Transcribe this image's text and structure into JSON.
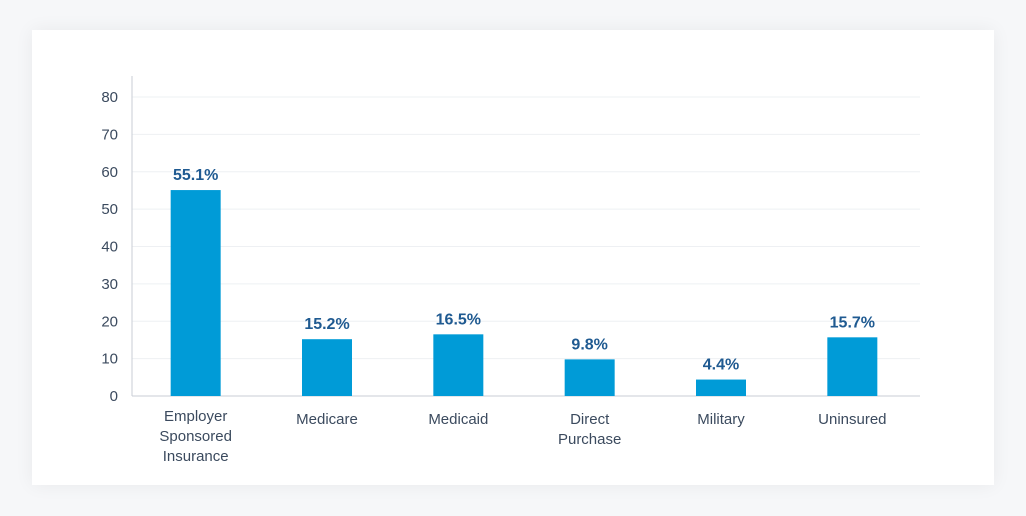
{
  "chart_data": {
    "type": "bar",
    "categories": [
      [
        "Employer",
        "Sponsored",
        "Insurance"
      ],
      [
        "Medicare"
      ],
      [
        "Medicaid"
      ],
      [
        "Direct",
        "Purchase"
      ],
      [
        "Military"
      ],
      [
        "Uninsured"
      ]
    ],
    "values": [
      55.1,
      15.2,
      16.5,
      9.8,
      4.4,
      15.7
    ],
    "data_labels": [
      "55.1%",
      "15.2%",
      "16.5%",
      "9.8%",
      "4.4%",
      "15.7%"
    ],
    "yticks": [
      "0",
      "10",
      "20",
      "30",
      "40",
      "50",
      "60",
      "70",
      "80"
    ],
    "ylim": [
      0,
      80
    ],
    "grid": true,
    "colors": {
      "bar": "#009bd7",
      "grid": "#eef0f3",
      "axis": "#c9ced6"
    }
  }
}
